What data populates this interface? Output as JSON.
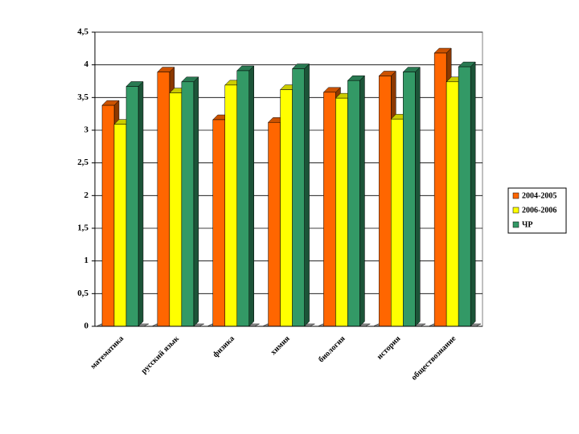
{
  "chart_data": {
    "type": "bar3d",
    "categories": [
      "математика",
      "русский язык",
      "физика",
      "химия",
      "биология",
      "история",
      "обществознание"
    ],
    "series": [
      {
        "name": "2004-2005",
        "color": "#ff6600",
        "values": [
          3.38,
          3.89,
          3.16,
          3.12,
          3.58,
          3.83,
          4.18
        ]
      },
      {
        "name": "2006-2006",
        "color": "#ffff00",
        "values": [
          3.09,
          3.57,
          3.69,
          3.62,
          3.49,
          3.17,
          3.74
        ]
      },
      {
        "name": "ЧР",
        "color": "#339966",
        "values": [
          3.67,
          3.74,
          3.91,
          3.94,
          3.76,
          3.89,
          3.97
        ]
      }
    ],
    "ylim": [
      0,
      4.5
    ],
    "yticks": [
      0,
      {
        "value": 0.5,
        "label": "0,5"
      },
      1,
      {
        "value": 1.5,
        "label": "1,5"
      },
      2,
      {
        "value": 2.5,
        "label": "2,5"
      },
      3,
      {
        "value": 3.5,
        "label": "3,5"
      },
      4,
      {
        "value": 4.5,
        "label": "4,5"
      }
    ],
    "grid": true,
    "legend": "right"
  }
}
